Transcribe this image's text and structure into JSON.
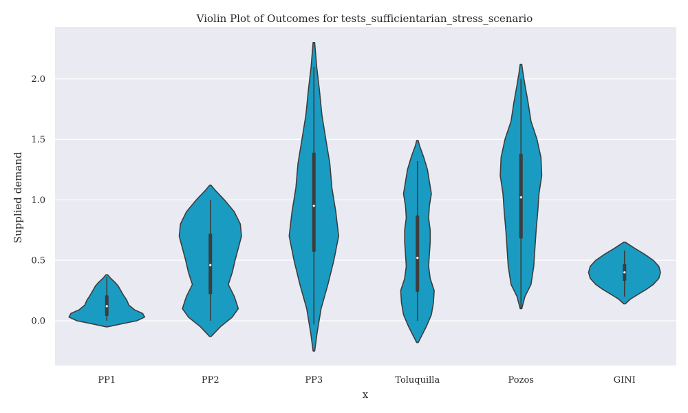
{
  "chart_data": {
    "type": "violin",
    "title": "Violin Plot of Outcomes for tests_sufficientarian_stress_scenario",
    "xlabel": "x",
    "ylabel": "Supplied demand",
    "ylim": [
      -0.37,
      2.43
    ],
    "yticks": [
      0.0,
      0.5,
      1.0,
      1.5,
      2.0
    ],
    "ytick_labels": [
      "0.0",
      "0.5",
      "1.0",
      "1.5",
      "2.0"
    ],
    "grid": true,
    "categories": [
      "PP1",
      "PP2",
      "PP3",
      "Toluquilla",
      "Pozos",
      "GINI"
    ],
    "colors": {
      "violin_fill": "#1a9bc2",
      "outline": "#3d3d3d",
      "plot_bg": "#eaeaf2",
      "grid": "#ffffff"
    },
    "violins": [
      {
        "category": "PP1",
        "median": 0.12,
        "q1": 0.04,
        "q3": 0.21,
        "whisker_low": 0.0,
        "whisker_high": 0.36,
        "profile": [
          [
            -0.05,
            0.02
          ],
          [
            -0.03,
            0.3
          ],
          [
            0.0,
            0.75
          ],
          [
            0.03,
            0.95
          ],
          [
            0.06,
            0.9
          ],
          [
            0.09,
            0.7
          ],
          [
            0.13,
            0.55
          ],
          [
            0.17,
            0.5
          ],
          [
            0.21,
            0.42
          ],
          [
            0.25,
            0.35
          ],
          [
            0.29,
            0.28
          ],
          [
            0.32,
            0.2
          ],
          [
            0.35,
            0.1
          ],
          [
            0.38,
            0.02
          ]
        ]
      },
      {
        "category": "PP2",
        "median": 0.46,
        "q1": 0.22,
        "q3": 0.72,
        "whisker_low": 0.0,
        "whisker_high": 1.0,
        "profile": [
          [
            -0.13,
            0.02
          ],
          [
            -0.05,
            0.25
          ],
          [
            0.03,
            0.55
          ],
          [
            0.1,
            0.7
          ],
          [
            0.2,
            0.6
          ],
          [
            0.3,
            0.45
          ],
          [
            0.4,
            0.55
          ],
          [
            0.5,
            0.62
          ],
          [
            0.6,
            0.7
          ],
          [
            0.7,
            0.78
          ],
          [
            0.8,
            0.75
          ],
          [
            0.9,
            0.6
          ],
          [
            1.0,
            0.35
          ],
          [
            1.08,
            0.12
          ],
          [
            1.12,
            0.02
          ]
        ]
      },
      {
        "category": "PP3",
        "median": 0.95,
        "q1": 0.57,
        "q3": 1.39,
        "whisker_low": -0.03,
        "whisker_high": 2.1,
        "profile": [
          [
            -0.25,
            0.02
          ],
          [
            -0.1,
            0.08
          ],
          [
            0.1,
            0.18
          ],
          [
            0.3,
            0.35
          ],
          [
            0.5,
            0.5
          ],
          [
            0.7,
            0.62
          ],
          [
            0.9,
            0.55
          ],
          [
            1.1,
            0.45
          ],
          [
            1.3,
            0.4
          ],
          [
            1.5,
            0.3
          ],
          [
            1.7,
            0.2
          ],
          [
            1.9,
            0.14
          ],
          [
            2.1,
            0.07
          ],
          [
            2.3,
            0.02
          ]
        ]
      },
      {
        "category": "Toluquilla",
        "median": 0.52,
        "q1": 0.24,
        "q3": 0.87,
        "whisker_low": 0.0,
        "whisker_high": 1.32,
        "profile": [
          [
            -0.18,
            0.02
          ],
          [
            -0.05,
            0.22
          ],
          [
            0.05,
            0.35
          ],
          [
            0.15,
            0.4
          ],
          [
            0.25,
            0.42
          ],
          [
            0.35,
            0.32
          ],
          [
            0.45,
            0.28
          ],
          [
            0.55,
            0.3
          ],
          [
            0.65,
            0.32
          ],
          [
            0.75,
            0.32
          ],
          [
            0.85,
            0.28
          ],
          [
            0.95,
            0.3
          ],
          [
            1.05,
            0.35
          ],
          [
            1.15,
            0.3
          ],
          [
            1.25,
            0.25
          ],
          [
            1.35,
            0.16
          ],
          [
            1.45,
            0.05
          ],
          [
            1.49,
            0.02
          ]
        ]
      },
      {
        "category": "Pozos",
        "median": 1.02,
        "q1": 0.68,
        "q3": 1.38,
        "whisker_low": 0.1,
        "whisker_high": 2.0,
        "profile": [
          [
            0.1,
            0.02
          ],
          [
            0.2,
            0.1
          ],
          [
            0.3,
            0.25
          ],
          [
            0.45,
            0.32
          ],
          [
            0.6,
            0.35
          ],
          [
            0.75,
            0.38
          ],
          [
            0.9,
            0.42
          ],
          [
            1.05,
            0.45
          ],
          [
            1.2,
            0.52
          ],
          [
            1.35,
            0.5
          ],
          [
            1.5,
            0.4
          ],
          [
            1.65,
            0.25
          ],
          [
            1.8,
            0.18
          ],
          [
            1.95,
            0.1
          ],
          [
            2.05,
            0.05
          ],
          [
            2.12,
            0.02
          ]
        ]
      },
      {
        "category": "GINI",
        "median": 0.4,
        "q1": 0.33,
        "q3": 0.47,
        "whisker_low": 0.2,
        "whisker_high": 0.58,
        "profile": [
          [
            0.14,
            0.02
          ],
          [
            0.18,
            0.15
          ],
          [
            0.22,
            0.35
          ],
          [
            0.26,
            0.55
          ],
          [
            0.3,
            0.72
          ],
          [
            0.35,
            0.86
          ],
          [
            0.4,
            0.9
          ],
          [
            0.45,
            0.86
          ],
          [
            0.5,
            0.72
          ],
          [
            0.55,
            0.5
          ],
          [
            0.6,
            0.25
          ],
          [
            0.65,
            0.02
          ]
        ]
      }
    ]
  }
}
